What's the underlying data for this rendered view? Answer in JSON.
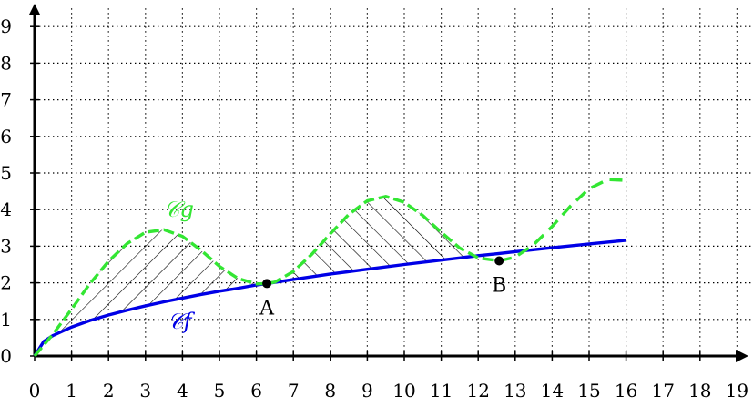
{
  "chart_data": {
    "type": "line",
    "title": "",
    "xlabel": "",
    "ylabel": "",
    "xlim": [
      0,
      19
    ],
    "ylim": [
      0,
      9
    ],
    "grid": true,
    "x_ticks": [
      "0",
      "1",
      "2",
      "3",
      "4",
      "5",
      "6",
      "7",
      "8",
      "9",
      "10",
      "11",
      "12",
      "13",
      "14",
      "15",
      "16",
      "17",
      "18",
      "19"
    ],
    "y_ticks": [
      "0",
      "1",
      "2",
      "3",
      "4",
      "5",
      "6",
      "7",
      "8",
      "9"
    ],
    "series": [
      {
        "name": "𝒞f",
        "color": "#0000e6",
        "style": "solid",
        "x": [
          0,
          0.25,
          0.5,
          1,
          1.5,
          2,
          2.5,
          3,
          3.5,
          4,
          4.5,
          5,
          5.5,
          6,
          6.283,
          7,
          8,
          9,
          10,
          11,
          12,
          12.566,
          13,
          14,
          15,
          16
        ],
        "y": [
          0,
          0.4,
          0.56,
          0.79,
          0.97,
          1.12,
          1.25,
          1.37,
          1.48,
          1.58,
          1.68,
          1.77,
          1.85,
          1.94,
          1.98,
          2.09,
          2.24,
          2.37,
          2.5,
          2.62,
          2.74,
          2.8,
          2.85,
          2.96,
          3.06,
          3.16
        ]
      },
      {
        "name": "𝒞g",
        "color": "#33e633",
        "style": "dashed",
        "x": [
          0,
          0.5,
          1,
          1.5,
          2,
          2.5,
          3,
          3.5,
          4,
          4.5,
          5,
          5.5,
          6,
          6.283,
          6.5,
          7,
          7.5,
          8,
          8.5,
          9,
          9.5,
          10,
          10.5,
          11,
          11.5,
          12,
          12.566,
          13,
          13.5,
          14,
          14.5,
          15,
          15.5,
          16
        ],
        "y": [
          0,
          0.6,
          1.28,
          1.98,
          2.59,
          3.07,
          3.38,
          3.45,
          3.27,
          2.89,
          2.45,
          2.12,
          1.97,
          1.98,
          2.02,
          2.31,
          2.78,
          3.34,
          3.87,
          4.24,
          4.36,
          4.2,
          3.84,
          3.38,
          2.95,
          2.68,
          2.6,
          2.7,
          3.04,
          3.54,
          4.1,
          4.57,
          4.82,
          4.8
        ]
      }
    ],
    "points": [
      {
        "label": "A",
        "x": 6.283,
        "y": 1.98
      },
      {
        "label": "B",
        "x": 12.566,
        "y": 2.6
      }
    ],
    "shaded_region": {
      "between": [
        "𝒞f",
        "𝒞g"
      ],
      "x_range": [
        0,
        12.566
      ],
      "pattern": "hatch"
    }
  }
}
